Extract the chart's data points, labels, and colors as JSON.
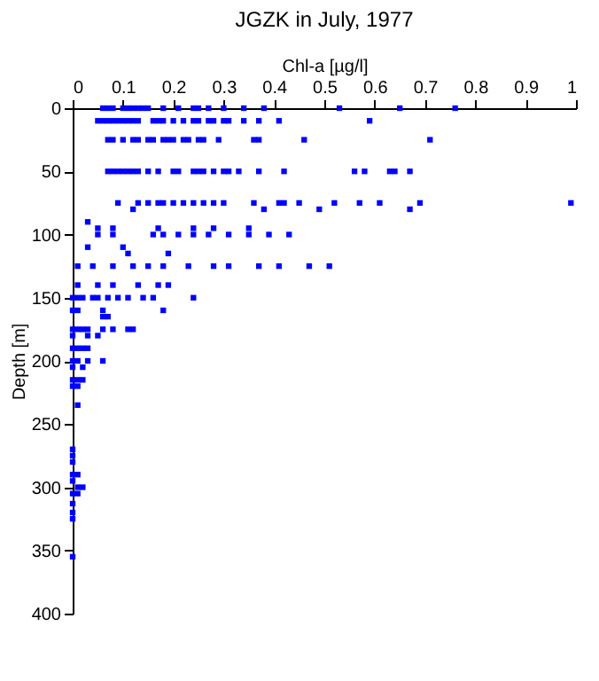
{
  "chart_data": {
    "type": "scatter",
    "title": "JGZK in July, 1977",
    "xlabel": "Chl-a [µg/l]",
    "ylabel": "Depth [m]",
    "xlim": [
      0,
      1
    ],
    "xticks": [
      0,
      0.1,
      0.2,
      0.3,
      0.4,
      0.5,
      0.6,
      0.7,
      0.8,
      0.9,
      1
    ],
    "ylim": [
      400,
      0
    ],
    "yticks": [
      0,
      50,
      100,
      150,
      200,
      250,
      300,
      350,
      400
    ],
    "grid": false,
    "marker": "square",
    "series": [
      {
        "color": "#0000ff",
        "x": [
          0.06,
          0.07,
          0.08,
          0.1,
          0.11,
          0.12,
          0.13,
          0.14,
          0.15,
          0.18,
          0.21,
          0.24,
          0.25,
          0.27,
          0.3,
          0.34,
          0.38,
          0.53,
          0.65,
          0.76,
          0.05,
          0.06,
          0.07,
          0.08,
          0.09,
          0.1,
          0.11,
          0.12,
          0.13,
          0.16,
          0.17,
          0.18,
          0.2,
          0.22,
          0.24,
          0.25,
          0.27,
          0.28,
          0.3,
          0.31,
          0.34,
          0.37,
          0.41,
          0.59,
          0.07,
          0.08,
          0.1,
          0.12,
          0.13,
          0.15,
          0.16,
          0.18,
          0.19,
          0.2,
          0.22,
          0.23,
          0.25,
          0.26,
          0.29,
          0.36,
          0.37,
          0.46,
          0.71,
          0.07,
          0.08,
          0.09,
          0.1,
          0.11,
          0.12,
          0.13,
          0.15,
          0.17,
          0.2,
          0.21,
          0.24,
          0.25,
          0.26,
          0.28,
          0.3,
          0.31,
          0.33,
          0.37,
          0.42,
          0.56,
          0.58,
          0.63,
          0.64,
          0.67,
          0.09,
          0.13,
          0.15,
          0.17,
          0.18,
          0.2,
          0.22,
          0.24,
          0.26,
          0.28,
          0.3,
          0.36,
          0.41,
          0.42,
          0.45,
          0.52,
          0.57,
          0.61,
          0.69,
          0.99,
          0.12,
          0.38,
          0.49,
          0.67,
          0.03,
          0.05,
          0.08,
          0.17,
          0.24,
          0.28,
          0.35,
          0.05,
          0.08,
          0.16,
          0.18,
          0.21,
          0.24,
          0.27,
          0.31,
          0.35,
          0.39,
          0.43,
          0.03,
          0.1,
          0.11,
          0.19,
          0.01,
          0.04,
          0.08,
          0.12,
          0.15,
          0.18,
          0.23,
          0.28,
          0.31,
          0.37,
          0.41,
          0.47,
          0.51,
          0.01,
          0.05,
          0.08,
          0.13,
          0.17,
          0.19,
          0.0,
          0.01,
          0.02,
          0.04,
          0.05,
          0.07,
          0.09,
          0.11,
          0.14,
          0.16,
          0.24,
          0.0,
          0.01,
          0.06,
          0.18,
          0.06,
          0.07,
          0.0,
          0.01,
          0.02,
          0.03,
          0.06,
          0.08,
          0.11,
          0.12,
          0.0,
          0.03,
          0.05,
          0.0,
          0.01,
          0.02,
          0.03,
          0.0,
          0.01,
          0.03,
          0.06,
          0.0,
          0.02,
          0.0,
          0.01,
          0.02,
          0.0,
          0.01,
          0.01,
          0.0,
          0.0,
          0.0,
          0.0,
          0.01,
          0.0,
          0.01,
          0.02,
          0.0,
          0.01,
          0.0,
          0.0,
          0.0,
          0.0
        ],
        "values": [
          0,
          0,
          0,
          0,
          0,
          0,
          0,
          0,
          0,
          0,
          0,
          0,
          0,
          0,
          0,
          0,
          0,
          0,
          0,
          0,
          10,
          10,
          10,
          10,
          10,
          10,
          10,
          10,
          10,
          10,
          10,
          10,
          10,
          10,
          10,
          10,
          10,
          10,
          10,
          10,
          10,
          10,
          10,
          10,
          25,
          25,
          25,
          25,
          25,
          25,
          25,
          25,
          25,
          25,
          25,
          25,
          25,
          25,
          25,
          25,
          25,
          25,
          25,
          50,
          50,
          50,
          50,
          50,
          50,
          50,
          50,
          50,
          50,
          50,
          50,
          50,
          50,
          50,
          50,
          50,
          50,
          50,
          50,
          50,
          50,
          50,
          50,
          50,
          75,
          75,
          75,
          75,
          75,
          75,
          75,
          75,
          75,
          75,
          75,
          75,
          75,
          75,
          75,
          75,
          75,
          75,
          75,
          75,
          80,
          80,
          80,
          80,
          90,
          95,
          95,
          95,
          95,
          95,
          95,
          100,
          100,
          100,
          100,
          100,
          100,
          100,
          100,
          100,
          100,
          100,
          110,
          110,
          115,
          115,
          125,
          125,
          125,
          125,
          125,
          125,
          125,
          125,
          125,
          125,
          125,
          125,
          125,
          140,
          140,
          140,
          140,
          140,
          140,
          150,
          150,
          150,
          150,
          150,
          150,
          150,
          150,
          150,
          150,
          150,
          160,
          160,
          160,
          160,
          165,
          165,
          175,
          175,
          175,
          175,
          175,
          175,
          175,
          175,
          180,
          180,
          180,
          190,
          190,
          190,
          190,
          200,
          200,
          200,
          200,
          205,
          205,
          215,
          215,
          215,
          220,
          220,
          235,
          270,
          275,
          280,
          290,
          290,
          295,
          300,
          300,
          305,
          305,
          313,
          320,
          325,
          355
        ]
      }
    ]
  }
}
